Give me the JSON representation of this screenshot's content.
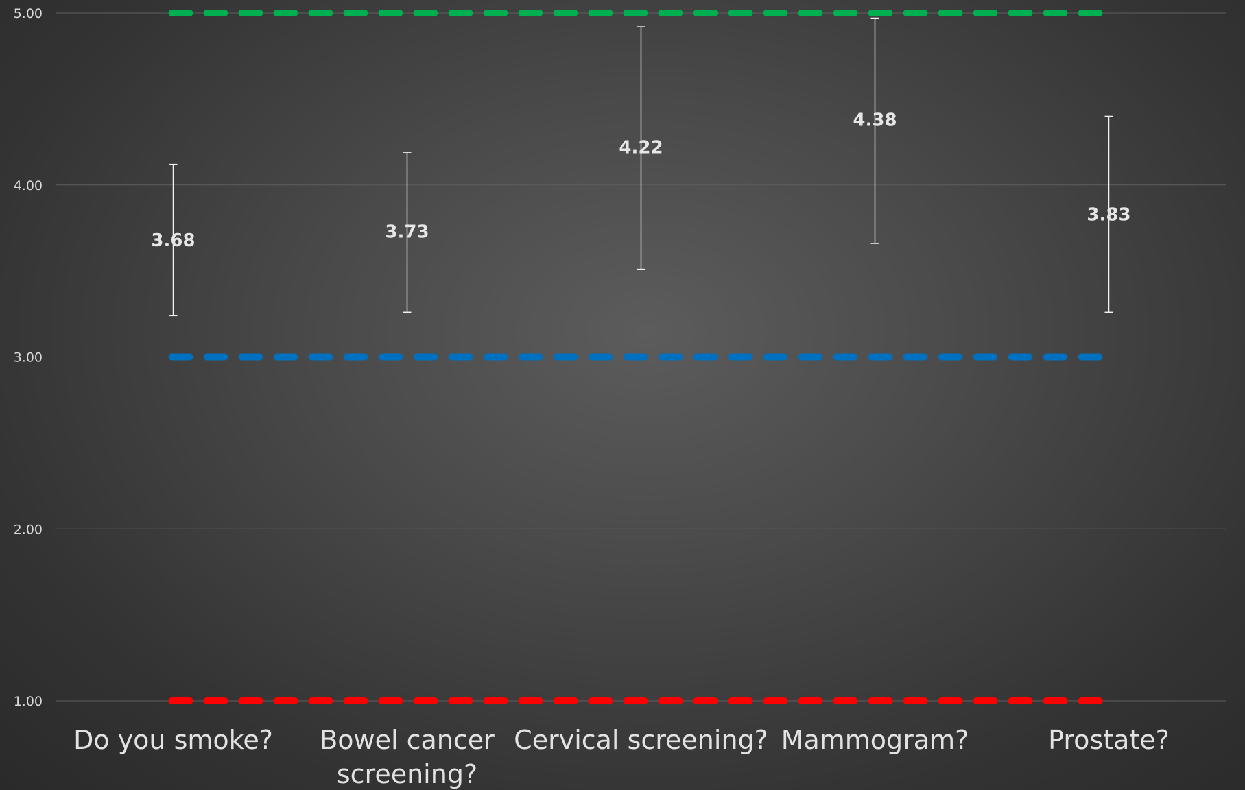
{
  "chart_data": {
    "type": "scatter",
    "categories": [
      "Do you smoke?",
      "Bowel cancer screening?",
      "Cervical screening?",
      "Mammogram?",
      "Prostate?"
    ],
    "category_lines": [
      [
        "Do you smoke?"
      ],
      [
        "Bowel cancer",
        "screening?"
      ],
      [
        "Cervical screening?"
      ],
      [
        "Mammogram?"
      ],
      [
        "Prostate?"
      ]
    ],
    "values": [
      3.68,
      3.73,
      4.22,
      4.38,
      3.83
    ],
    "value_labels": [
      "3.68",
      "3.73",
      "4.22",
      "4.38",
      "3.83"
    ],
    "error_bars": [
      {
        "low": 3.24,
        "high": 4.12
      },
      {
        "low": 3.26,
        "high": 4.19
      },
      {
        "low": 3.51,
        "high": 4.92
      },
      {
        "low": 3.66,
        "high": 4.97
      },
      {
        "low": 3.26,
        "high": 4.4
      }
    ],
    "reference_lines": [
      {
        "value": 5.0,
        "color": "#00b050",
        "style": "dashed"
      },
      {
        "value": 3.0,
        "color": "#0070c0",
        "style": "dashed"
      },
      {
        "value": 1.0,
        "color": "#ff0000",
        "style": "dashed"
      }
    ],
    "ylim": [
      1.0,
      5.0
    ],
    "yticks": [
      "1.00",
      "2.00",
      "3.00",
      "4.00",
      "5.00"
    ],
    "ytick_values": [
      1,
      2,
      3,
      4,
      5
    ],
    "grid": true,
    "title": "",
    "xlabel": "",
    "ylabel": ""
  }
}
